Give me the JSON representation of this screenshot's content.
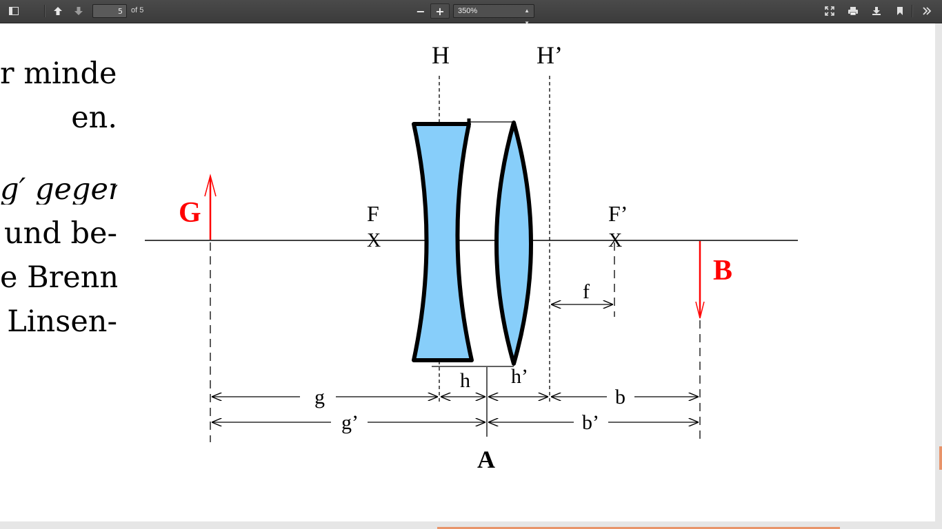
{
  "toolbar": {
    "page_current": "5",
    "page_of": "of 5",
    "zoom_out_label": "−",
    "zoom_in_label": "+",
    "zoom_value": "350%"
  },
  "body_text": [
    "r minde-",
    "en.",
    "g′ gegen",
    "und be-",
    "e Brenn-",
    "Linsen-"
  ],
  "figure": {
    "label_H": "H",
    "label_H_prime": "H’",
    "label_F": "F",
    "label_F_prime": "F’",
    "mark_x": "X",
    "label_G": "G",
    "label_B": "B",
    "label_f": "f",
    "label_h": "h",
    "label_h_prime": "h’",
    "label_g": "g",
    "label_b": "b",
    "label_g_prime": "g’",
    "label_b_prime": "b’",
    "label_A": "A",
    "colors": {
      "lens": "#87cefa",
      "red": "#ff0000",
      "line": "#000000"
    }
  }
}
